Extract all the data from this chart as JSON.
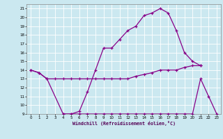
{
  "xlabel": "Windchill (Refroidissement éolien,°C)",
  "bg_color": "#cbe8f0",
  "grid_color": "#ffffff",
  "line_color": "#880088",
  "xlim": [
    -0.5,
    23.5
  ],
  "ylim": [
    9,
    21.5
  ],
  "yticks": [
    9,
    10,
    11,
    12,
    13,
    14,
    15,
    16,
    17,
    18,
    19,
    20,
    21
  ],
  "xticks": [
    0,
    1,
    2,
    3,
    4,
    5,
    6,
    7,
    8,
    9,
    10,
    11,
    12,
    13,
    14,
    15,
    16,
    17,
    18,
    19,
    20,
    21,
    22,
    23
  ],
  "line1_x": [
    0,
    1,
    2,
    3,
    4,
    5,
    6,
    7,
    8,
    9,
    10,
    11,
    12,
    13,
    14,
    15,
    16,
    17,
    18,
    19,
    20,
    21
  ],
  "line1_y": [
    14.0,
    13.7,
    13.0,
    13.0,
    13.0,
    13.0,
    13.0,
    13.0,
    13.0,
    13.0,
    13.0,
    13.0,
    13.0,
    13.3,
    13.5,
    13.7,
    14.0,
    14.0,
    14.0,
    14.3,
    14.5,
    14.5
  ],
  "line2_x": [
    0,
    1,
    2,
    4,
    5,
    6,
    7,
    8,
    9,
    10,
    11,
    12,
    13,
    14,
    15,
    16,
    17,
    18,
    19,
    20,
    21
  ],
  "line2_y": [
    14.0,
    13.7,
    13.0,
    9.0,
    9.0,
    9.3,
    11.5,
    14.0,
    16.5,
    16.5,
    17.5,
    18.5,
    19.0,
    20.2,
    20.5,
    21.0,
    20.5,
    18.5,
    16.0,
    15.0,
    14.5
  ],
  "line3_x": [
    4,
    5,
    6,
    7,
    8,
    9,
    10,
    11,
    12,
    13,
    14,
    15,
    16,
    17,
    18,
    19,
    20,
    21,
    22,
    23
  ],
  "line3_y": [
    9.0,
    9.0,
    9.0,
    9.0,
    9.0,
    9.0,
    9.0,
    9.0,
    9.0,
    9.0,
    9.0,
    9.0,
    9.0,
    9.0,
    9.0,
    9.0,
    9.0,
    13.0,
    11.0,
    9.0
  ]
}
